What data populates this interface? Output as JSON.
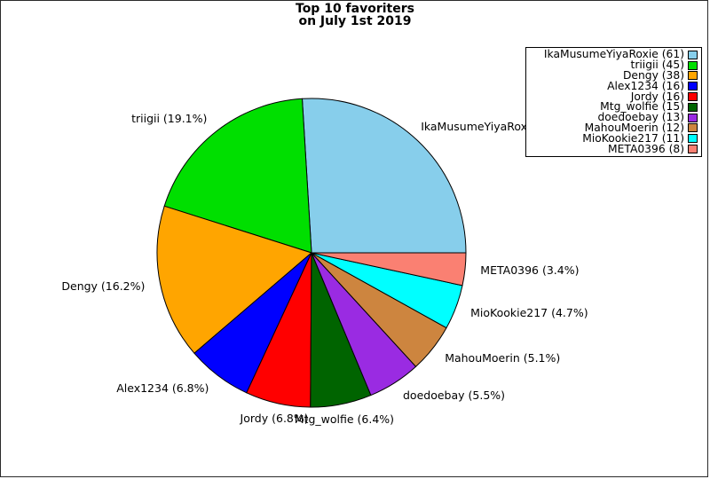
{
  "figure": {
    "background": "#ffffff",
    "frame_color": "#2a2a2a"
  },
  "chart_data": {
    "type": "pie",
    "title": "Top 10 favoriters on July 1st 2019",
    "title_lines": [
      "Top 10 favoriters",
      "on July 1st 2019"
    ],
    "total": 235,
    "start_angle_deg": 0,
    "direction": "counterclockwise",
    "edge_color": "#000000",
    "legend_position": "upper-right",
    "slices": [
      {
        "name": "IkaMusumeYiyaRoxie",
        "value": 61,
        "pct": 26.0,
        "color": "#87CEEB",
        "label": "IkaMusumeYiyaRoxie (26.0%)",
        "legend_label": "IkaMusumeYiyaRoxie (61)"
      },
      {
        "name": "triigii",
        "value": 45,
        "pct": 19.1,
        "color": "#00DF00",
        "label": "triigii (19.1%)",
        "legend_label": "triigii (45)"
      },
      {
        "name": "Dengy",
        "value": 38,
        "pct": 16.2,
        "color": "#FFA500",
        "label": "Dengy (16.2%)",
        "legend_label": "Dengy (38)"
      },
      {
        "name": "Alex1234",
        "value": 16,
        "pct": 6.8,
        "color": "#0000FF",
        "label": "Alex1234 (6.8%)",
        "legend_label": "Alex1234 (16)"
      },
      {
        "name": "Jordy",
        "value": 16,
        "pct": 6.8,
        "color": "#FF0000",
        "label": "Jordy (6.8%)",
        "legend_label": "Jordy (16)"
      },
      {
        "name": "Mtg_wolfie",
        "value": 15,
        "pct": 6.4,
        "color": "#006400",
        "label": "Mtg_wolfie (6.4%)",
        "legend_label": "Mtg_wolfie (15)"
      },
      {
        "name": "doedoebay",
        "value": 13,
        "pct": 5.5,
        "color": "#9A2BE2",
        "label": "doedoebay (5.5%)",
        "legend_label": "doedoebay (13)"
      },
      {
        "name": "MahouMoerin",
        "value": 12,
        "pct": 5.1,
        "color": "#CD853F",
        "label": "MahouMoerin (5.1%)",
        "legend_label": "MahouMoerin (12)"
      },
      {
        "name": "MioKookie217",
        "value": 11,
        "pct": 4.7,
        "color": "#00FFFF",
        "label": "MioKookie217 (4.7%)",
        "legend_label": "MioKookie217 (11)"
      },
      {
        "name": "META0396",
        "value": 8,
        "pct": 3.4,
        "color": "#FA8072",
        "label": "META0396 (3.4%)",
        "legend_label": "META0396 (8)"
      }
    ]
  }
}
